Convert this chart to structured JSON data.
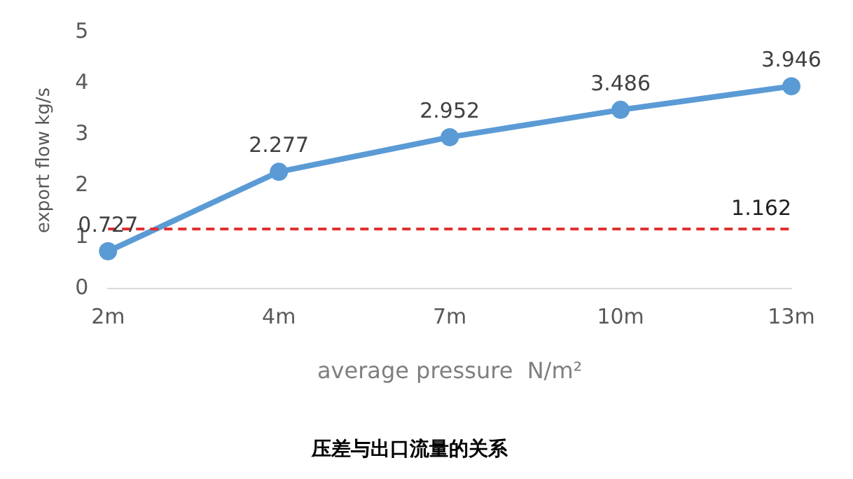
{
  "chart_data": {
    "type": "line",
    "title": "压差与出口流量的关系",
    "xlabel": "average pressure  N/m²",
    "ylabel": "export flow kg/s",
    "categories": [
      "2m",
      "4m",
      "7m",
      "10m",
      "13m"
    ],
    "series": [
      {
        "color": "#5b9bd5",
        "values": [
          0.727,
          2.277,
          2.952,
          3.486,
          3.946
        ]
      }
    ],
    "ylim": [
      0,
      5
    ],
    "yticks": [
      0,
      1,
      2,
      3,
      4,
      5
    ],
    "grid": false,
    "legend": false,
    "marker": "circle",
    "line_style": "solid",
    "data_labels": true,
    "ref_lines": [
      {
        "axis": "y",
        "value": 1.162,
        "label": "1.162",
        "color": "#e03030",
        "line_style": "dashed"
      }
    ]
  }
}
